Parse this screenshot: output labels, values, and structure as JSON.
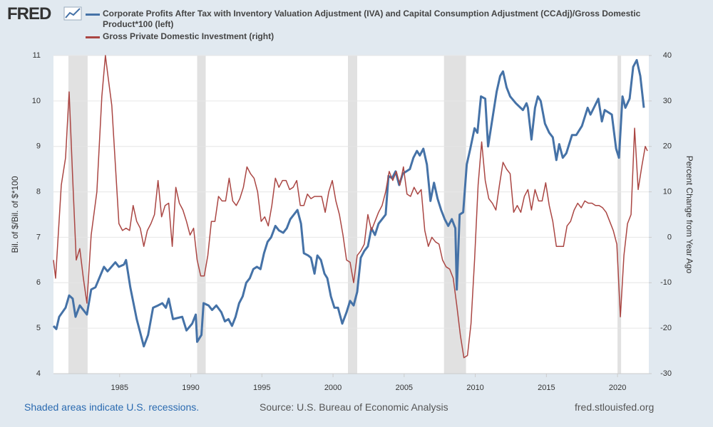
{
  "logo": "FRED",
  "footer": {
    "left": "Shaded areas indicate U.S. recessions.",
    "center": "Source: U.S. Bureau of Economic Analysis",
    "right": "fred.stlouisfed.org"
  },
  "chart_data": {
    "type": "line",
    "ylabel": "Bil. of $/Bil. of $*100",
    "y2label": "Percent Change from Year Ago",
    "xlim": [
      1980.35,
      2022.2
    ],
    "xticks": [
      1985,
      1990,
      1995,
      2000,
      2005,
      2010,
      2015,
      2020
    ],
    "ylim": [
      4,
      11
    ],
    "yticks": [
      4,
      5,
      6,
      7,
      8,
      9,
      10,
      11
    ],
    "y2lim": [
      -30,
      40
    ],
    "y2ticks": [
      -30,
      -20,
      -10,
      0,
      10,
      20,
      30,
      40
    ],
    "grid": true,
    "recession_color": "#e1e1e1",
    "recessions": [
      [
        1981.4,
        1982.75
      ],
      [
        1990.45,
        1991.05
      ],
      [
        2001.05,
        2001.7
      ],
      [
        2007.8,
        2009.35
      ],
      [
        2020.0,
        2020.25
      ]
    ],
    "series": [
      {
        "name": "Corporate Profits After Tax with Inventory Valuation Adjustment (IVA) and Capital Consumption Adjustment (CCAdj)/Gross Domestic Product*100 (left)",
        "color": "#4572a7",
        "axis": "y",
        "x": [
          1980.35,
          1980.55,
          1980.75,
          1981.2,
          1981.45,
          1981.7,
          1981.9,
          1982.2,
          1982.7,
          1983.0,
          1983.3,
          1983.9,
          1984.15,
          1984.7,
          1984.95,
          1985.3,
          1985.45,
          1985.75,
          1986.2,
          1986.7,
          1987.0,
          1987.35,
          1987.7,
          1988.0,
          1988.25,
          1988.45,
          1988.75,
          1989.4,
          1989.7,
          1990.1,
          1990.35,
          1990.45,
          1990.75,
          1990.9,
          1991.25,
          1991.5,
          1991.8,
          1992.15,
          1992.4,
          1992.65,
          1992.9,
          1993.15,
          1993.4,
          1993.65,
          1993.9,
          1994.15,
          1994.4,
          1994.65,
          1994.9,
          1995.15,
          1995.4,
          1995.65,
          1995.95,
          1996.2,
          1996.5,
          1996.75,
          1997.0,
          1997.25,
          1997.5,
          1997.75,
          1997.95,
          1998.25,
          1998.45,
          1998.7,
          1998.9,
          1999.15,
          1999.4,
          1999.6,
          1999.85,
          2000.1,
          2000.35,
          2000.65,
          2000.95,
          2001.2,
          2001.45,
          2001.7,
          2001.95,
          2002.2,
          2002.45,
          2002.7,
          2002.95,
          2003.2,
          2003.45,
          2003.7,
          2003.9,
          2004.15,
          2004.4,
          2004.65,
          2004.9,
          2005.15,
          2005.4,
          2005.65,
          2005.9,
          2006.1,
          2006.35,
          2006.6,
          2006.85,
          2007.1,
          2007.35,
          2007.6,
          2007.85,
          2008.1,
          2008.35,
          2008.6,
          2008.7,
          2008.9,
          2009.15,
          2009.4,
          2009.65,
          2009.95,
          2010.15,
          2010.4,
          2010.7,
          2010.9,
          2011.25,
          2011.5,
          2011.75,
          2011.95,
          2012.2,
          2012.45,
          2012.85,
          2013.35,
          2013.6,
          2013.7,
          2013.95,
          2014.2,
          2014.4,
          2014.6,
          2014.9,
          2015.2,
          2015.45,
          2015.7,
          2015.9,
          2016.15,
          2016.4,
          2016.8,
          2017.1,
          2017.5,
          2017.9,
          2018.1,
          2018.65,
          2018.9,
          2019.1,
          2019.6,
          2019.9,
          2020.1,
          2020.35,
          2020.55,
          2020.85,
          2021.1,
          2021.35,
          2021.6,
          2021.85
        ],
        "values": [
          5.05,
          4.98,
          5.25,
          5.45,
          5.72,
          5.65,
          5.25,
          5.5,
          5.3,
          5.85,
          5.9,
          6.35,
          6.25,
          6.45,
          6.35,
          6.4,
          6.5,
          5.9,
          5.2,
          4.6,
          4.85,
          5.45,
          5.5,
          5.55,
          5.45,
          5.65,
          5.2,
          5.25,
          4.95,
          5.1,
          5.3,
          4.7,
          4.85,
          5.55,
          5.5,
          5.4,
          5.5,
          5.35,
          5.15,
          5.2,
          5.05,
          5.25,
          5.55,
          5.7,
          6.0,
          6.1,
          6.3,
          6.35,
          6.3,
          6.65,
          6.9,
          7.0,
          7.25,
          7.15,
          7.1,
          7.2,
          7.4,
          7.5,
          7.6,
          7.3,
          6.65,
          6.6,
          6.55,
          6.2,
          6.6,
          6.5,
          6.2,
          6.1,
          5.7,
          5.45,
          5.45,
          5.1,
          5.35,
          5.6,
          5.5,
          5.8,
          6.55,
          6.7,
          6.8,
          7.2,
          7.05,
          7.3,
          7.4,
          7.5,
          8.35,
          8.3,
          8.45,
          8.15,
          8.4,
          8.45,
          8.5,
          8.75,
          8.9,
          8.8,
          8.95,
          8.6,
          7.8,
          8.2,
          7.85,
          7.6,
          7.4,
          7.25,
          7.4,
          7.2,
          5.85,
          7.5,
          7.55,
          8.6,
          8.95,
          9.4,
          9.3,
          10.1,
          10.05,
          9.0,
          9.7,
          10.2,
          10.55,
          10.65,
          10.3,
          10.1,
          9.95,
          9.8,
          9.95,
          9.85,
          9.15,
          9.85,
          10.1,
          10.0,
          9.5,
          9.3,
          9.2,
          8.7,
          9.05,
          8.75,
          8.85,
          9.25,
          9.25,
          9.45,
          9.85,
          9.7,
          10.05,
          9.55,
          9.8,
          9.7,
          8.95,
          8.75,
          10.1,
          9.85,
          10.05,
          10.75,
          10.9,
          10.55,
          9.85
        ]
      },
      {
        "name": "Gross Private Domestic Investment (right)",
        "color": "#aa4643",
        "axis": "y2",
        "x": [
          1980.35,
          1980.5,
          1980.9,
          1981.2,
          1981.45,
          1981.7,
          1981.95,
          1982.2,
          1982.45,
          1982.7,
          1983.0,
          1983.4,
          1983.75,
          1984.0,
          1984.2,
          1984.45,
          1984.7,
          1984.95,
          1985.2,
          1985.45,
          1985.7,
          1985.95,
          1986.2,
          1986.45,
          1986.7,
          1986.95,
          1987.2,
          1987.45,
          1987.7,
          1987.95,
          1988.2,
          1988.45,
          1988.7,
          1988.95,
          1989.2,
          1989.45,
          1989.7,
          1989.95,
          1990.2,
          1990.45,
          1990.7,
          1990.95,
          1991.2,
          1991.45,
          1991.7,
          1991.95,
          1992.2,
          1992.45,
          1992.7,
          1992.95,
          1993.2,
          1993.45,
          1993.7,
          1993.95,
          1994.2,
          1994.45,
          1994.7,
          1994.95,
          1995.2,
          1995.45,
          1995.7,
          1995.95,
          1996.2,
          1996.45,
          1996.7,
          1996.95,
          1997.2,
          1997.45,
          1997.7,
          1997.95,
          1998.2,
          1998.45,
          1998.7,
          1998.95,
          1999.2,
          1999.45,
          1999.7,
          1999.95,
          2000.2,
          2000.45,
          2000.7,
          2000.95,
          2001.2,
          2001.45,
          2001.7,
          2001.95,
          2002.2,
          2002.45,
          2002.7,
          2002.95,
          2003.2,
          2003.45,
          2003.7,
          2003.95,
          2004.2,
          2004.45,
          2004.7,
          2004.95,
          2005.2,
          2005.45,
          2005.7,
          2005.95,
          2006.2,
          2006.45,
          2006.7,
          2006.95,
          2007.2,
          2007.45,
          2007.7,
          2007.95,
          2008.2,
          2008.45,
          2008.7,
          2008.95,
          2009.2,
          2009.45,
          2009.7,
          2009.95,
          2010.2,
          2010.45,
          2010.7,
          2010.95,
          2011.2,
          2011.45,
          2011.7,
          2011.95,
          2012.2,
          2012.45,
          2012.7,
          2012.95,
          2013.2,
          2013.45,
          2013.7,
          2013.95,
          2014.2,
          2014.45,
          2014.7,
          2014.95,
          2015.2,
          2015.45,
          2015.7,
          2015.95,
          2016.2,
          2016.45,
          2016.7,
          2016.95,
          2017.2,
          2017.45,
          2017.7,
          2017.95,
          2018.2,
          2018.45,
          2018.7,
          2018.95,
          2019.2,
          2019.45,
          2019.7,
          2019.95,
          2020.2,
          2020.45,
          2020.7,
          2020.95,
          2021.2,
          2021.45,
          2021.7,
          2021.95,
          2022.1
        ],
        "values": [
          -5,
          -9,
          11.5,
          17.5,
          32,
          13,
          -5,
          -2.5,
          -9,
          -14.5,
          0.5,
          10,
          31,
          40,
          35,
          29,
          16,
          3,
          1.5,
          2,
          1.5,
          7,
          3.5,
          2,
          -2,
          1.5,
          3,
          5,
          12.5,
          4.5,
          7,
          7.5,
          -2,
          11,
          7.5,
          6,
          3.5,
          0.5,
          2,
          -5,
          -8.5,
          -8.5,
          -4,
          3.5,
          3.5,
          9,
          8,
          8,
          13,
          8,
          7,
          8.5,
          11,
          15.5,
          14,
          13,
          10,
          3.5,
          4.5,
          2.5,
          7,
          13,
          11,
          12.5,
          12.5,
          10.5,
          11,
          12.5,
          7,
          7,
          9.5,
          8.5,
          9,
          9,
          9,
          5.5,
          10,
          12.5,
          8,
          5,
          0.5,
          -5,
          -5.5,
          -10,
          -4,
          -3,
          -1.5,
          5,
          1.5,
          3.5,
          5.5,
          7,
          10,
          14.5,
          12.5,
          14.5,
          11.5,
          15.5,
          9.5,
          9,
          11,
          9.5,
          10.5,
          1.5,
          -2,
          0,
          -1,
          -1.5,
          -5,
          -6.5,
          -7,
          -9,
          -15,
          -21.5,
          -26.5,
          -26,
          -19,
          -5,
          11.5,
          21,
          12.5,
          8.5,
          7.5,
          6,
          11.5,
          16.5,
          15,
          14,
          5.5,
          7,
          5.5,
          9,
          10.5,
          6,
          10.5,
          8,
          8,
          12,
          7,
          3.5,
          -2,
          -2,
          -2,
          2.5,
          3.5,
          6,
          7.5,
          6.5,
          8,
          7.5,
          7.5,
          7,
          7,
          6.5,
          5.5,
          3.5,
          1.5,
          -1.5,
          -17.5,
          -4,
          3,
          5,
          24,
          10.5,
          15.5,
          20,
          19
        ]
      }
    ]
  }
}
